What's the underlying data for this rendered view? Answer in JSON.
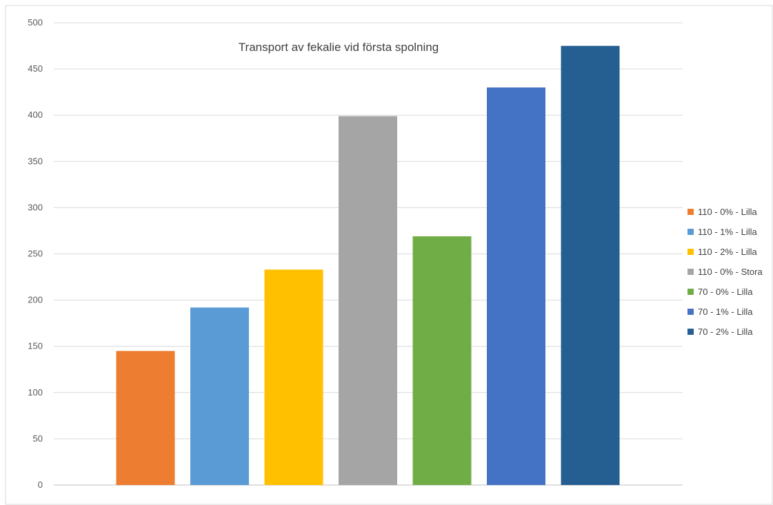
{
  "chart_data": {
    "type": "bar",
    "title": "Transport  av fekalie vid första spolning",
    "xlabel": "",
    "ylabel": "",
    "ylim": [
      0,
      500
    ],
    "yticks": [
      0,
      50,
      100,
      150,
      200,
      250,
      300,
      350,
      400,
      450,
      500
    ],
    "grid": true,
    "legend_position": "right",
    "series": [
      {
        "name": "110 - 0% - Lilla",
        "value": 145,
        "color": "#ED7D31"
      },
      {
        "name": "110 - 1% - Lilla",
        "value": 192,
        "color": "#5B9BD5"
      },
      {
        "name": "110 - 2% - Lilla",
        "value": 233,
        "color": "#FFC000"
      },
      {
        "name": "110 - 0% - Stora",
        "value": 399,
        "color": "#A5A5A5"
      },
      {
        "name": "70 - 0% - Lilla",
        "value": 269,
        "color": "#70AD47"
      },
      {
        "name": "70 - 1% - Lilla",
        "value": 430,
        "color": "#4472C4"
      },
      {
        "name": "70 - 2% - Lilla",
        "value": 475,
        "color": "#255E91"
      }
    ]
  }
}
